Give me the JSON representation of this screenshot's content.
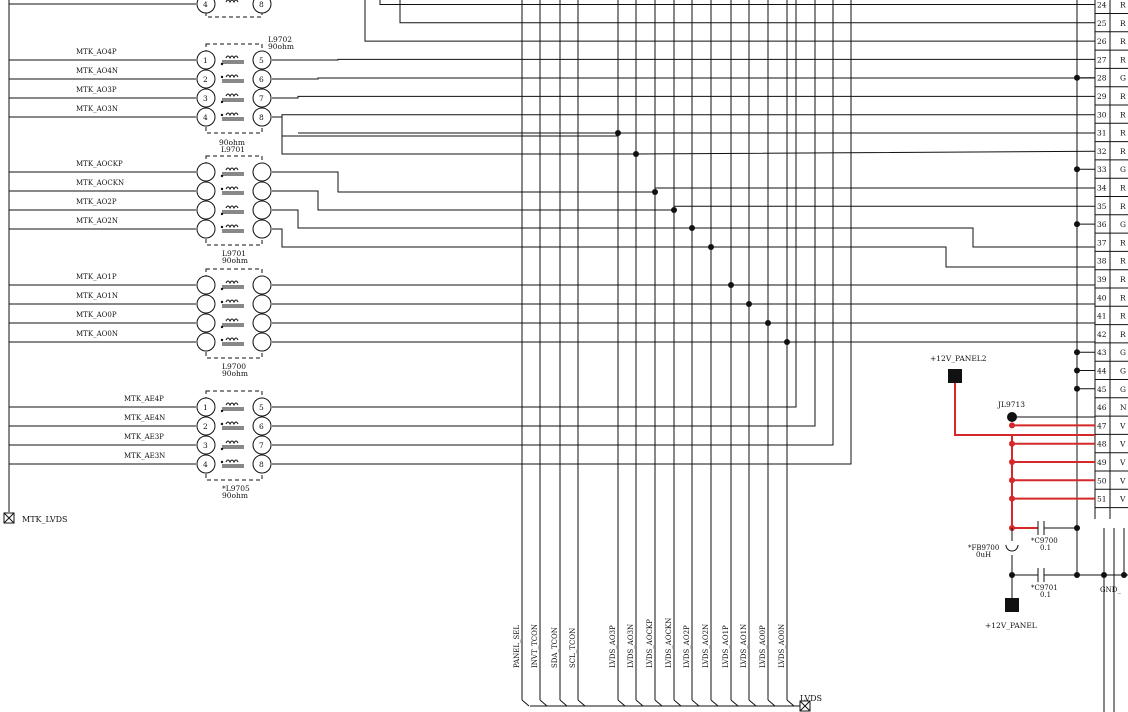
{
  "colors": {
    "wire": "#111111",
    "power": "#d62828",
    "background": "#ffffff"
  },
  "bus": {
    "left_port": "MTK_LVDS",
    "bottom_port": "LVDS"
  },
  "chokes": [
    {
      "ref": "L9702",
      "value": "90ohm",
      "nets": [
        "MTK_AO4P",
        "MTK_AO4N",
        "MTK_AO3P",
        "MTK_AO3N"
      ],
      "pins_left": [
        "1",
        "2",
        "3",
        "4"
      ],
      "pins_right": [
        "5",
        "6",
        "7",
        "8"
      ]
    },
    {
      "ref": "L9701",
      "value": "90ohm",
      "nets": [
        "MTK_AOCKP",
        "MTK_AOCKN",
        "MTK_AO2P",
        "MTK_AO2N"
      ],
      "pins_left": [
        "",
        "",
        "",
        ""
      ],
      "pins_right": [
        "",
        "",
        "",
        ""
      ]
    },
    {
      "ref": "L9700",
      "value": "90ohm",
      "nets": [
        "MTK_AO1P",
        "MTK_AO1N",
        "MTK_AO0P",
        "MTK_AO0N"
      ],
      "pins_left": [
        "",
        "",
        "",
        ""
      ],
      "pins_right": [
        "",
        "",
        "",
        ""
      ]
    },
    {
      "ref": "*L9705",
      "value": "90ohm",
      "nets": [
        "MTK_AE4P",
        "MTK_AE4N",
        "MTK_AE3P",
        "MTK_AE3N"
      ],
      "pins_left": [
        "1",
        "2",
        "3",
        "4"
      ],
      "pins_right": [
        "5",
        "6",
        "7",
        "8"
      ]
    }
  ],
  "top_partial_pins": [
    "4",
    "8"
  ],
  "vertical_nets": [
    "PANEL_SEL",
    "INVT_TCON",
    "SDA_TCON",
    "SCL_TCON",
    "LVDS_AO3P",
    "LVDS_AO3N",
    "LVDS_AOCKP",
    "LVDS_AOCKN",
    "LVDS_AO2P",
    "LVDS_AO2N",
    "LVDS_AO1P",
    "LVDS_AO1N",
    "LVDS_AO0P",
    "LVDS_AO0N"
  ],
  "connector_pins": [
    "24",
    "25",
    "26",
    "27",
    "28",
    "29",
    "30",
    "31",
    "32",
    "33",
    "34",
    "35",
    "36",
    "37",
    "38",
    "39",
    "40",
    "41",
    "42",
    "43",
    "44",
    "45",
    "46",
    "47",
    "48",
    "49",
    "50",
    "51"
  ],
  "connector_letters": [
    "R",
    "R",
    "R",
    "R",
    "G",
    "R",
    "R",
    "R",
    "R",
    "G",
    "R",
    "R",
    "G",
    "R",
    "R",
    "R",
    "R",
    "R",
    "R",
    "G",
    "G",
    "G",
    "N",
    "V",
    "V",
    "V",
    "V",
    "V"
  ],
  "power": {
    "rail_top": "+12V_PANEL2",
    "rail_bottom": "+12V_PANEL",
    "jumper": "JL9713",
    "ferrite": {
      "ref": "*FB9700",
      "value": "0uH"
    },
    "caps": [
      {
        "ref": "*C9700",
        "value": "0.1"
      },
      {
        "ref": "*C9701",
        "value": "0.1"
      }
    ],
    "gnd_label": "GND_"
  }
}
